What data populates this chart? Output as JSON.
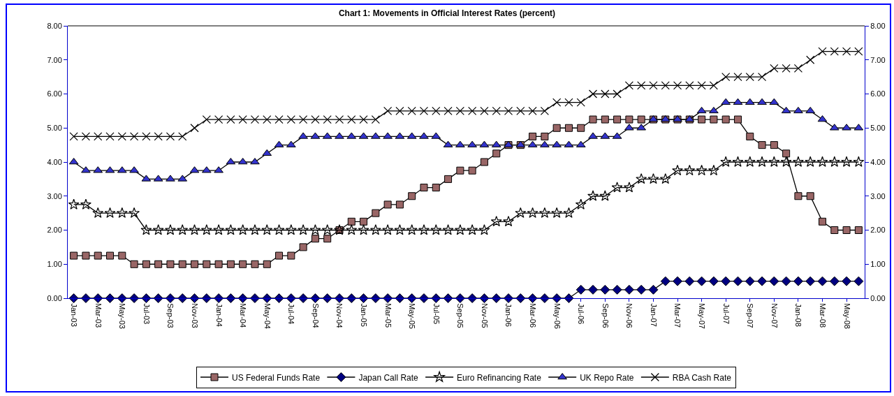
{
  "chart_data": {
    "type": "line",
    "title": "Chart 1: Movements in Official Interest Rates (percent)",
    "categories": [
      "Jan-03",
      null,
      "Mar-03",
      null,
      "May-03",
      null,
      "Jul-03",
      null,
      "Sep-03",
      null,
      "Nov-03",
      null,
      "Jan-04",
      null,
      "Mar-04",
      null,
      "May-04",
      null,
      "Jul-04",
      null,
      "Sep-04",
      null,
      "Nov-04",
      null,
      "Jan-05",
      null,
      "Mar-05",
      null,
      "May-05",
      null,
      "Jul-05",
      null,
      "Sep-05",
      null,
      "Nov-05",
      null,
      "Jan-06",
      null,
      "Mar-06",
      null,
      "May-06",
      null,
      "Jul-06",
      null,
      "Sep-06",
      null,
      "Nov-06",
      null,
      "Jan-07",
      null,
      "Mar-07",
      null,
      "May-07",
      null,
      "Jul-07",
      null,
      "Sep-07",
      null,
      "Nov-07",
      null,
      "Jan-08",
      null,
      "Mar-08",
      null,
      "May-08",
      null
    ],
    "series": [
      {
        "name": "US Federal Funds Rate",
        "color": "#996666",
        "marker": "square",
        "values": [
          1.25,
          1.25,
          1.25,
          1.25,
          1.25,
          1,
          1,
          1,
          1,
          1,
          1,
          1,
          1,
          1,
          1,
          1,
          1,
          1.25,
          1.25,
          1.5,
          1.75,
          1.75,
          2,
          2.25,
          2.25,
          2.5,
          2.75,
          2.75,
          3,
          3.25,
          3.25,
          3.5,
          3.75,
          3.75,
          4,
          4.25,
          4.5,
          4.5,
          4.75,
          4.75,
          5,
          5,
          5,
          5.25,
          5.25,
          5.25,
          5.25,
          5.25,
          5.25,
          5.25,
          5.25,
          5.25,
          5.25,
          5.25,
          5.25,
          5.25,
          4.75,
          4.5,
          4.5,
          4.25,
          3,
          3,
          2.25,
          2,
          2,
          2
        ]
      },
      {
        "name": "Japan Call Rate",
        "color": "#000080",
        "marker": "diamond",
        "values": [
          0,
          0,
          0,
          0,
          0,
          0,
          0,
          0,
          0,
          0,
          0,
          0,
          0,
          0,
          0,
          0,
          0,
          0,
          0,
          0,
          0,
          0,
          0,
          0,
          0,
          0,
          0,
          0,
          0,
          0,
          0,
          0,
          0,
          0,
          0,
          0,
          0,
          0,
          0,
          0,
          0,
          0,
          0.25,
          0.25,
          0.25,
          0.25,
          0.25,
          0.25,
          0.25,
          0.5,
          0.5,
          0.5,
          0.5,
          0.5,
          0.5,
          0.5,
          0.5,
          0.5,
          0.5,
          0.5,
          0.5,
          0.5,
          0.5,
          0.5,
          0.5,
          0.5
        ]
      },
      {
        "name": "Euro Refinancing Rate",
        "color": "#000000",
        "marker": "star",
        "values": [
          2.75,
          2.75,
          2.5,
          2.5,
          2.5,
          2.5,
          2,
          2,
          2,
          2,
          2,
          2,
          2,
          2,
          2,
          2,
          2,
          2,
          2,
          2,
          2,
          2,
          2,
          2,
          2,
          2,
          2,
          2,
          2,
          2,
          2,
          2,
          2,
          2,
          2,
          2.25,
          2.25,
          2.5,
          2.5,
          2.5,
          2.5,
          2.5,
          2.75,
          3,
          3,
          3.25,
          3.25,
          3.5,
          3.5,
          3.5,
          3.75,
          3.75,
          3.75,
          3.75,
          4,
          4,
          4,
          4,
          4,
          4,
          4,
          4,
          4,
          4,
          4,
          4
        ]
      },
      {
        "name": "UK Repo Rate",
        "color": "#3333cc",
        "marker": "triangle",
        "values": [
          4,
          3.75,
          3.75,
          3.75,
          3.75,
          3.75,
          3.5,
          3.5,
          3.5,
          3.5,
          3.75,
          3.75,
          3.75,
          4,
          4,
          4,
          4.25,
          4.5,
          4.5,
          4.75,
          4.75,
          4.75,
          4.75,
          4.75,
          4.75,
          4.75,
          4.75,
          4.75,
          4.75,
          4.75,
          4.75,
          4.5,
          4.5,
          4.5,
          4.5,
          4.5,
          4.5,
          4.5,
          4.5,
          4.5,
          4.5,
          4.5,
          4.5,
          4.75,
          4.75,
          4.75,
          5,
          5,
          5.25,
          5.25,
          5.25,
          5.25,
          5.5,
          5.5,
          5.75,
          5.75,
          5.75,
          5.75,
          5.75,
          5.5,
          5.5,
          5.5,
          5.25,
          5,
          5,
          5
        ]
      },
      {
        "name": "RBA Cash Rate",
        "color": "#000000",
        "marker": "cross",
        "values": [
          4.75,
          4.75,
          4.75,
          4.75,
          4.75,
          4.75,
          4.75,
          4.75,
          4.75,
          4.75,
          5,
          5.25,
          5.25,
          5.25,
          5.25,
          5.25,
          5.25,
          5.25,
          5.25,
          5.25,
          5.25,
          5.25,
          5.25,
          5.25,
          5.25,
          5.25,
          5.5,
          5.5,
          5.5,
          5.5,
          5.5,
          5.5,
          5.5,
          5.5,
          5.5,
          5.5,
          5.5,
          5.5,
          5.5,
          5.5,
          5.75,
          5.75,
          5.75,
          6,
          6,
          6,
          6.25,
          6.25,
          6.25,
          6.25,
          6.25,
          6.25,
          6.25,
          6.25,
          6.5,
          6.5,
          6.5,
          6.5,
          6.75,
          6.75,
          6.75,
          7,
          7.25,
          7.25,
          7.25,
          7.25
        ]
      }
    ],
    "ylim": [
      0,
      8
    ],
    "yticks": [
      {
        "value": 0,
        "label": "0.00"
      },
      {
        "value": 1,
        "label": "1.00"
      },
      {
        "value": 2,
        "label": "2.00"
      },
      {
        "value": 3,
        "label": "3.00"
      },
      {
        "value": 4,
        "label": "4.00"
      },
      {
        "value": 5,
        "label": "5.00"
      },
      {
        "value": 6,
        "label": "6.00"
      },
      {
        "value": 7,
        "label": "7.00"
      },
      {
        "value": 8,
        "label": "8.00"
      }
    ],
    "y2lim": [
      0,
      8
    ],
    "y2ticks": [
      {
        "value": 0,
        "label": "0.00"
      },
      {
        "value": 1,
        "label": "1.00"
      },
      {
        "value": 2,
        "label": "2.00"
      },
      {
        "value": 3,
        "label": "3.00"
      },
      {
        "value": 4,
        "label": "4.00"
      },
      {
        "value": 5,
        "label": "5.00"
      },
      {
        "value": 6,
        "label": "6.00"
      },
      {
        "value": 7,
        "label": "7.00"
      },
      {
        "value": 8,
        "label": "8.00"
      }
    ],
    "grid": false,
    "legend": "bottom",
    "line_style": "solid"
  }
}
